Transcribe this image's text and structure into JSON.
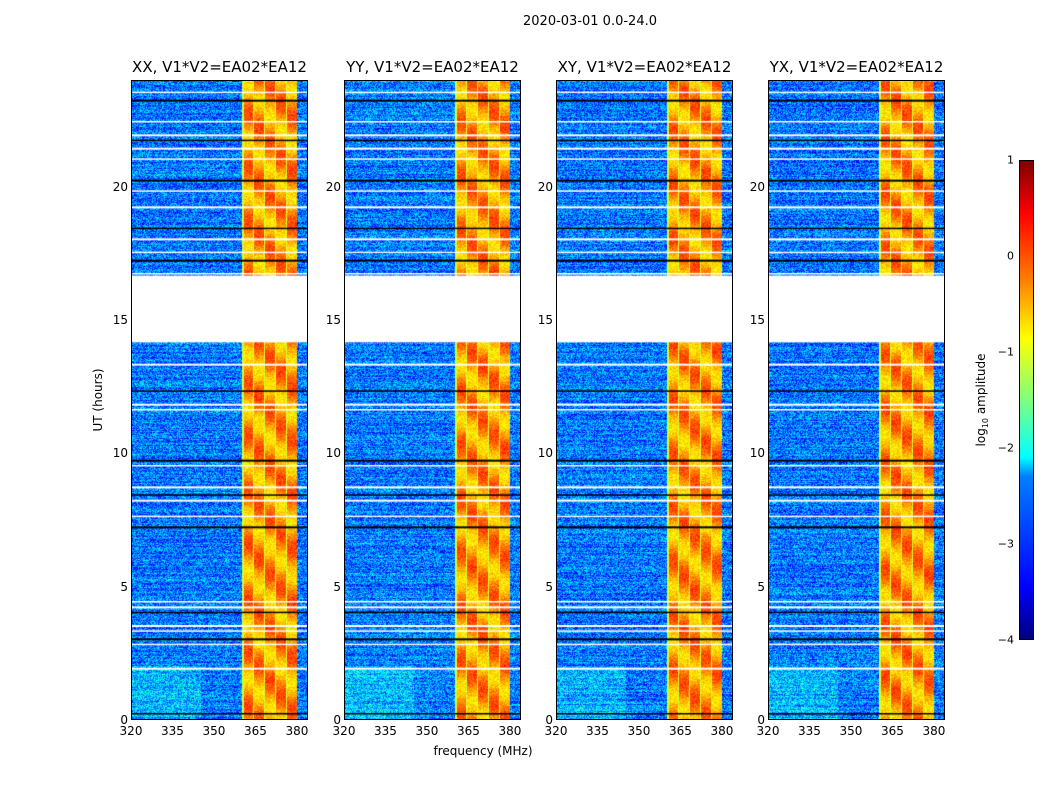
{
  "chart_data": {
    "type": "heatmap",
    "title": "2020-03-01 0.0-24.0",
    "xlabel": "frequency (MHz)",
    "ylabel": "UT (hours)",
    "xlim": [
      320,
      384
    ],
    "ylim": [
      0,
      24
    ],
    "xticks": [
      "320",
      "335",
      "350",
      "365",
      "380"
    ],
    "yticks": [
      "0",
      "5",
      "10",
      "15",
      "20"
    ],
    "panels": [
      {
        "title": "XX, V1*V2=EA02*EA12"
      },
      {
        "title": "YY, V1*V2=EA02*EA12"
      },
      {
        "title": "XY, V1*V2=EA02*EA12"
      },
      {
        "title": "YX, V1*V2=EA02*EA12"
      }
    ],
    "colorbar": {
      "label": "log10 amplitude",
      "label_main": "log",
      "label_sub": "10",
      "label_rest": " amplitude",
      "range": [
        -4,
        1
      ],
      "ticks": [
        "1",
        "0",
        "−1",
        "−2",
        "−3",
        "−4"
      ],
      "colormap": "jet"
    },
    "background_log_amplitude": -2.8,
    "bright_band": {
      "freq_range_mhz": [
        360,
        380
      ],
      "log_amplitude": -0.3
    },
    "data_gap_hours": [
      14.2,
      16.7
    ],
    "flagged_hours": [
      0.3,
      2.0,
      2.9,
      3.1,
      3.4,
      3.6,
      4.1,
      4.3,
      4.5,
      7.3,
      7.7,
      8.3,
      8.5,
      8.8,
      9.6,
      9.8,
      11.7,
      11.9,
      12.4,
      13.4,
      16.8,
      17.3,
      17.6,
      18.1,
      18.5,
      19.3,
      19.9,
      20.3,
      21.1,
      21.5,
      21.8,
      22.0,
      22.5,
      23.3,
      23.6
    ]
  }
}
